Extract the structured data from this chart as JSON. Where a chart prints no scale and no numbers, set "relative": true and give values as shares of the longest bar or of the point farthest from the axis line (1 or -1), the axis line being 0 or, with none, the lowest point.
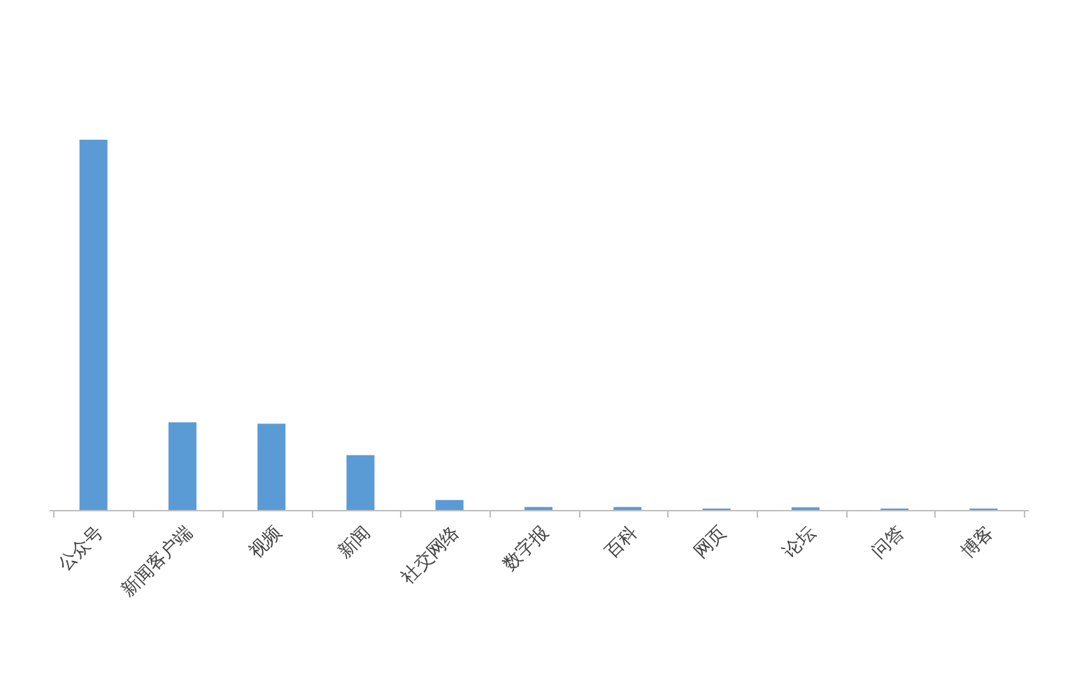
{
  "chart_data": {
    "type": "bar",
    "relative": true,
    "color": "#5b9bd5",
    "grid": false,
    "categories": [
      "公众号",
      "新闻客户端",
      "视频",
      "新闻",
      "社交网络",
      "数字报",
      "百科",
      "网页",
      "论坛",
      "问答",
      "博客"
    ],
    "values": [
      1,
      0.237,
      0.233,
      0.148,
      0.027,
      0.008,
      0.008,
      0.004,
      0.007,
      0.004,
      0.004
    ]
  }
}
